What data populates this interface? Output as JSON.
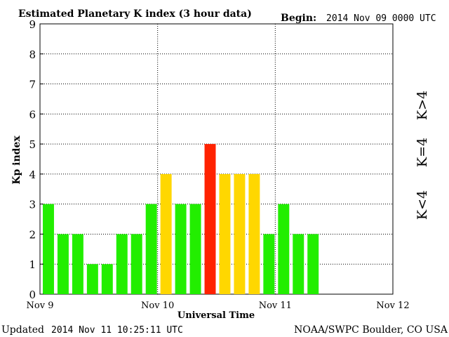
{
  "header": {
    "title": "Estimated Planetary K index (3 hour data)",
    "begin_label": "Begin:",
    "begin_value": "2014 Nov 09 0000 UTC"
  },
  "footer": {
    "updated_label": "Updated",
    "updated_value": "2014 Nov 11 10:25:11 UTC",
    "source": "NOAA/SWPC Boulder, CO USA"
  },
  "legend": {
    "high": "K>4",
    "equal": "K=4",
    "low": "K<4"
  },
  "colors": {
    "low": "#22ee00",
    "equal": "#ffd700",
    "high": "#ff2200"
  },
  "chart_data": {
    "type": "bar",
    "title": "Estimated Planetary K index (3 hour data)",
    "xlabel": "Universal Time",
    "ylabel": "Kp index",
    "ylim": [
      0,
      9
    ],
    "yticks": [
      "0",
      "1",
      "2",
      "3",
      "4",
      "5",
      "6",
      "7",
      "8",
      "9"
    ],
    "xticks": [
      "Nov 9",
      "Nov 10",
      "Nov 11",
      "Nov 12"
    ],
    "interval_hours": 3,
    "slots_total": 24,
    "grid": true,
    "values": [
      3,
      2,
      2,
      1,
      1,
      2,
      2,
      3,
      4,
      3,
      3,
      5,
      4,
      4,
      4,
      2,
      3,
      2,
      2
    ]
  }
}
